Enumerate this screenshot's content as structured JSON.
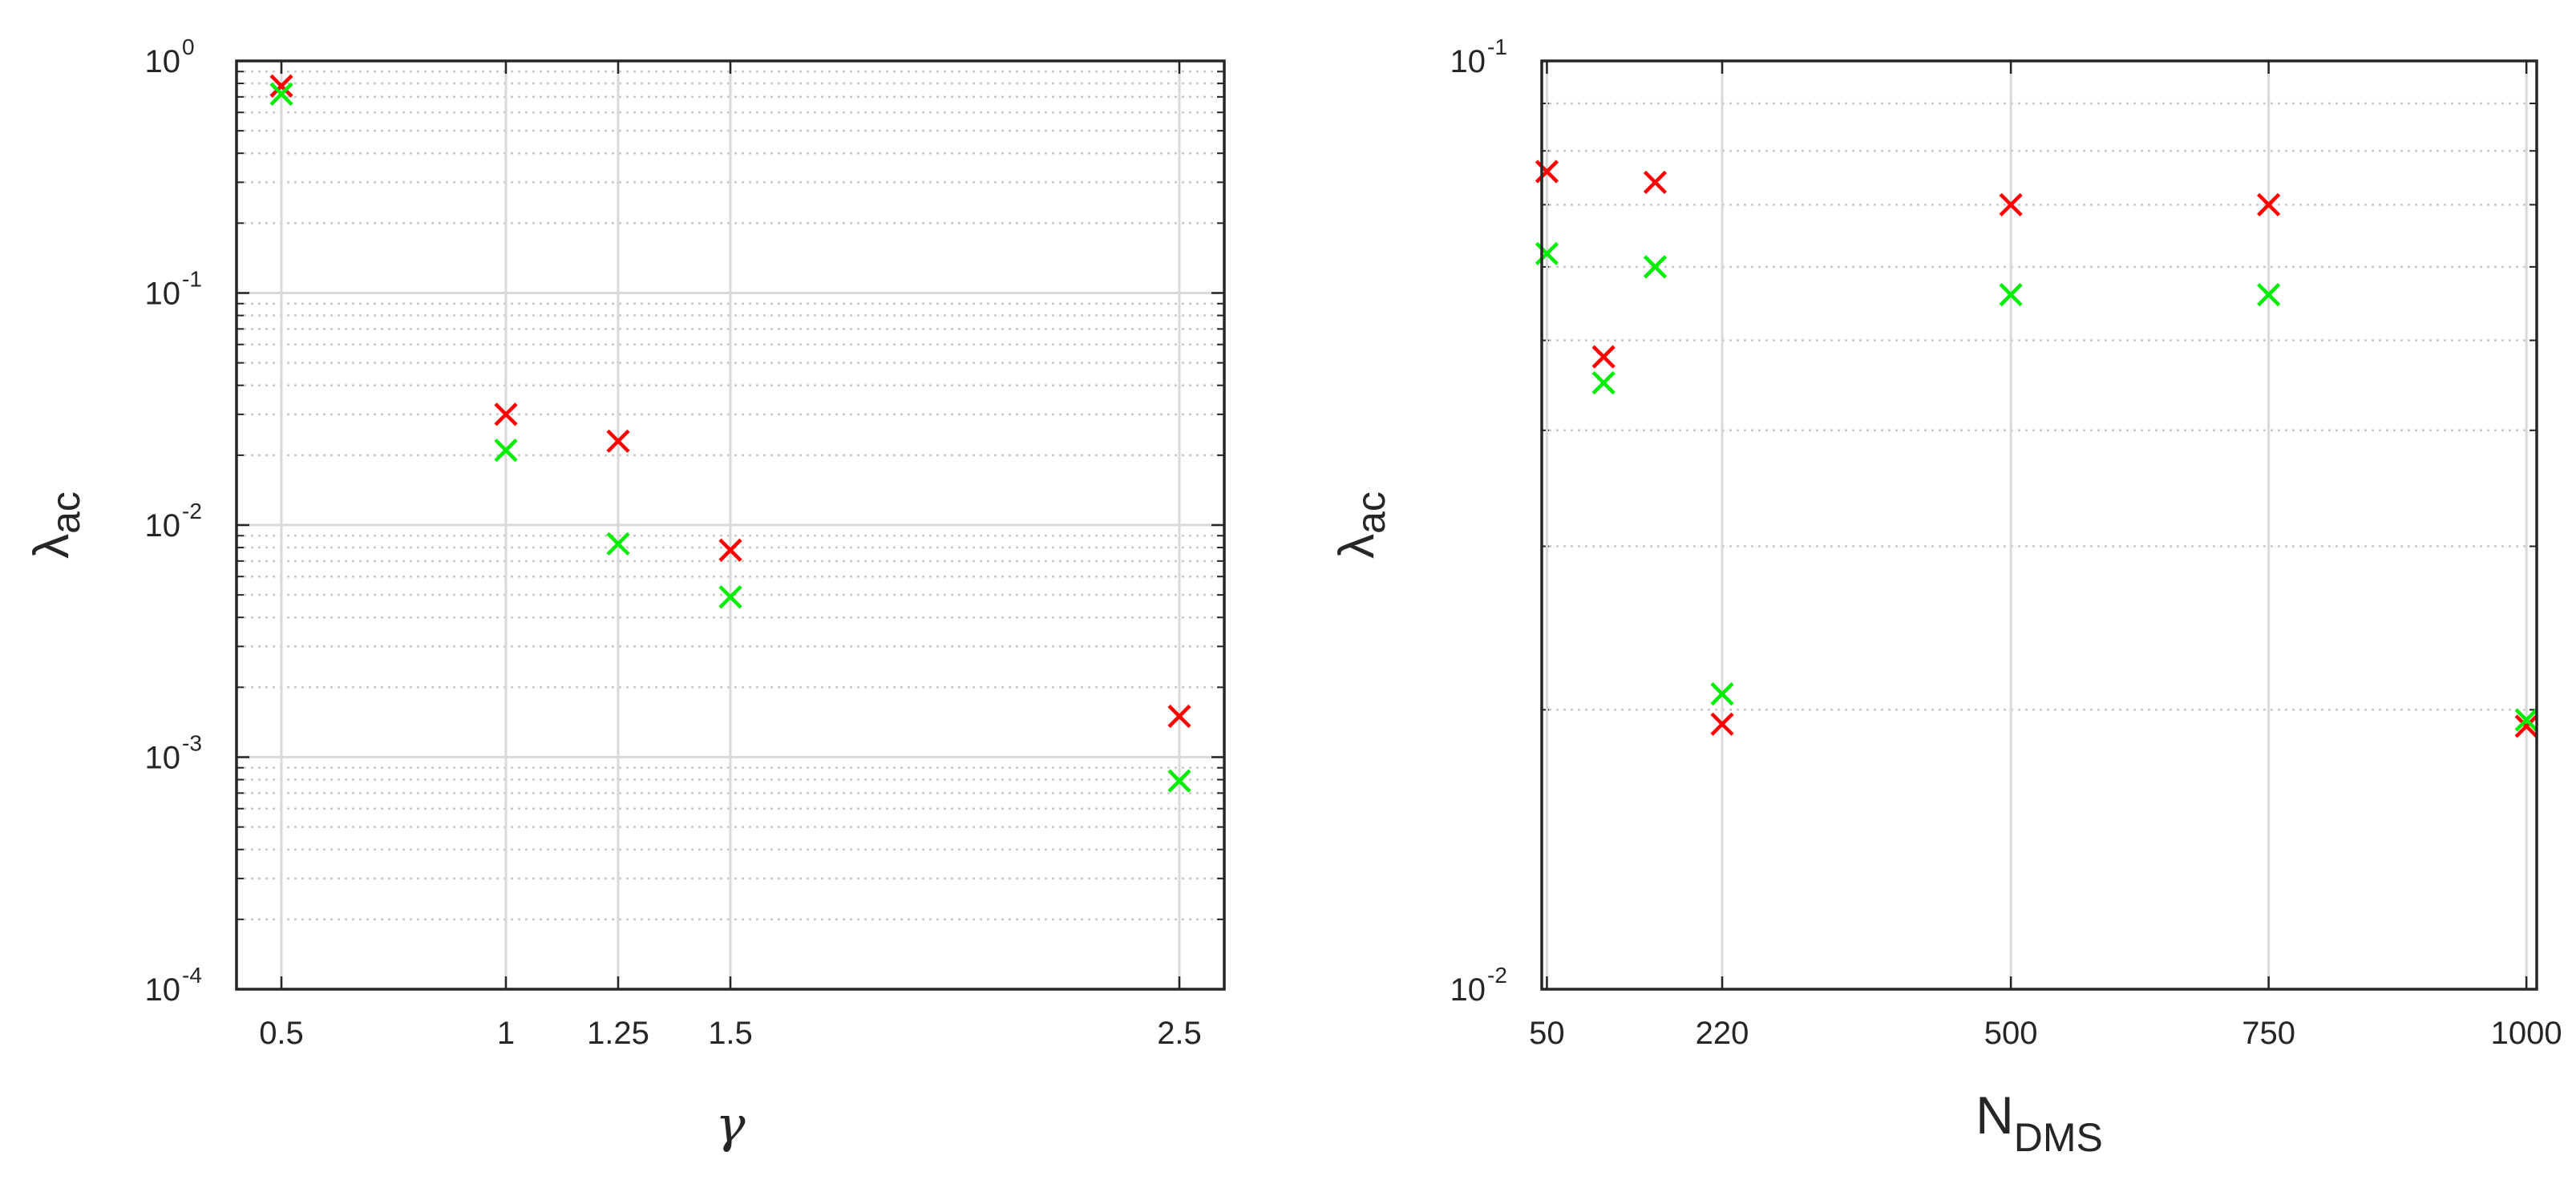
{
  "colors": {
    "red": "#ff0000",
    "green": "#00ee00",
    "grid": "#d9d9d9",
    "axis": "#262626"
  },
  "chart_data": [
    {
      "type": "scatter",
      "title": "",
      "xlabel": "γ",
      "ylabel": {
        "main": "λ",
        "sub": "ac"
      },
      "x_scale": "linear",
      "y_scale": "log",
      "xlim": [
        0.4,
        2.6
      ],
      "ylim": [
        0.0001,
        1
      ],
      "x_ticks": [
        0.5,
        1,
        1.25,
        1.5,
        2.5
      ],
      "x_tick_labels": [
        "0.5",
        "1",
        "1.25",
        "1.5",
        "2.5"
      ],
      "y_ticks": [
        0.0001,
        0.001,
        0.01,
        0.1,
        1
      ],
      "y_tick_labels": [
        {
          "base": "10",
          "exp": "-4"
        },
        {
          "base": "10",
          "exp": "-3"
        },
        {
          "base": "10",
          "exp": "-2"
        },
        {
          "base": "10",
          "exp": "-1"
        },
        {
          "base": "10",
          "exp": "0"
        }
      ],
      "grid": true,
      "series": [
        {
          "color": "red",
          "marker": "x",
          "x": [
            0.5,
            1,
            1.25,
            1.5,
            2.5
          ],
          "y": [
            0.78,
            0.03,
            0.023,
            0.0078,
            0.0015
          ]
        },
        {
          "color": "green",
          "marker": "x",
          "x": [
            0.5,
            1,
            1.25,
            1.5,
            2.5
          ],
          "y": [
            0.72,
            0.021,
            0.0083,
            0.0049,
            0.00079
          ]
        }
      ]
    },
    {
      "type": "scatter",
      "title": "",
      "xlabel": {
        "main": "N",
        "sub": "DMS"
      },
      "ylabel": {
        "main": "λ",
        "sub": "ac"
      },
      "x_scale": "linear",
      "y_scale": "log",
      "xlim": [
        45,
        1010
      ],
      "ylim": [
        0.01,
        0.1
      ],
      "x_ticks": [
        50,
        220,
        500,
        750,
        1000
      ],
      "x_tick_labels": [
        "50",
        "220",
        "500",
        "750",
        "1000"
      ],
      "y_ticks": [
        0.01,
        0.1
      ],
      "y_tick_labels": [
        {
          "base": "10",
          "exp": "-2"
        },
        {
          "base": "10",
          "exp": "-1"
        }
      ],
      "grid": true,
      "series": [
        {
          "color": "red",
          "marker": "x",
          "x": [
            50,
            105,
            155,
            220,
            500,
            750,
            1000
          ],
          "y": [
            0.076,
            0.048,
            0.074,
            0.0193,
            0.07,
            0.07,
            0.0192
          ]
        },
        {
          "color": "green",
          "marker": "x",
          "x": [
            50,
            105,
            155,
            220,
            500,
            750,
            1000
          ],
          "y": [
            0.062,
            0.045,
            0.06,
            0.0208,
            0.056,
            0.056,
            0.0195
          ]
        }
      ]
    }
  ]
}
